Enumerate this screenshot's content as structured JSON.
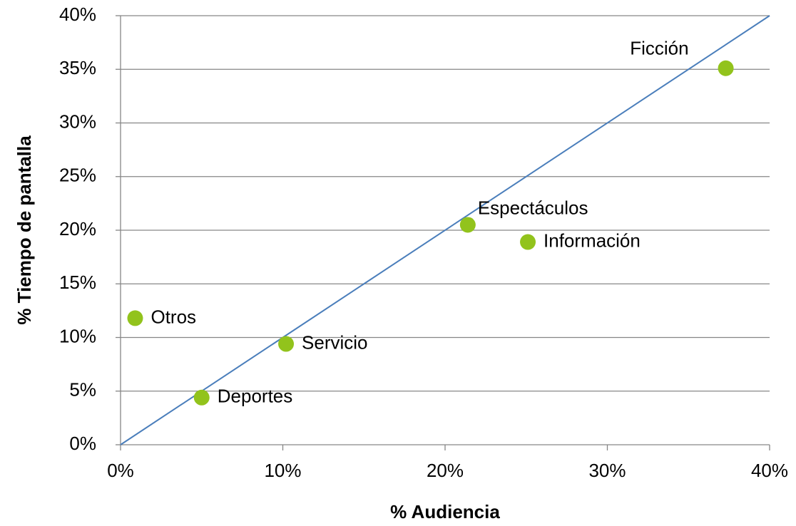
{
  "chart_data": {
    "type": "scatter",
    "xlabel": "% Audiencia",
    "ylabel": "% Tiempo de pantalla",
    "labels": [
      "Otros",
      "Deportes",
      "Servicio",
      "Espectáculos",
      "Información",
      "Ficción"
    ],
    "x": [
      0.9,
      5.0,
      10.2,
      21.4,
      25.1,
      37.3
    ],
    "values": [
      11.8,
      4.4,
      9.4,
      20.5,
      18.9,
      35.1
    ],
    "color": "#92c31c",
    "reference_line": {
      "x": [
        0,
        40
      ],
      "y": [
        0,
        40
      ],
      "color": "#4a7ebb"
    },
    "xlim": [
      0,
      40
    ],
    "ylim": [
      0,
      40
    ],
    "xticks": [
      {
        "value": 0,
        "label": "0%"
      },
      {
        "value": 10,
        "label": "10%"
      },
      {
        "value": 20,
        "label": "20%"
      },
      {
        "value": 30,
        "label": "30%"
      },
      {
        "value": 40,
        "label": "40%"
      }
    ],
    "yticks": [
      {
        "value": 0,
        "label": "0%"
      },
      {
        "value": 5,
        "label": "5%"
      },
      {
        "value": 10,
        "label": "10%"
      },
      {
        "value": 15,
        "label": "15%"
      },
      {
        "value": 20,
        "label": "20%"
      },
      {
        "value": 25,
        "label": "25%"
      },
      {
        "value": 30,
        "label": "30%"
      },
      {
        "value": 35,
        "label": "35%"
      },
      {
        "value": 40,
        "label": "40%"
      }
    ],
    "grid": true
  }
}
